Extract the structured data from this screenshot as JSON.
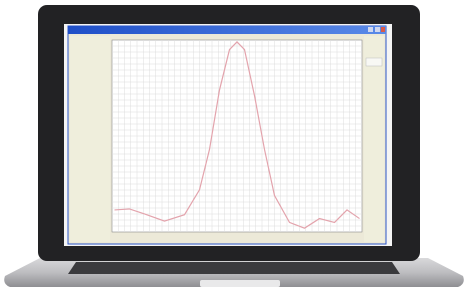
{
  "chart_data": {
    "type": "line",
    "x": [
      1,
      7,
      13,
      21,
      29,
      35,
      39,
      43,
      47,
      50,
      53,
      57,
      61,
      65,
      71,
      77,
      83,
      89,
      94,
      99
    ],
    "series": [
      {
        "color": "#e3a3ac",
        "values": [
          11.5,
          12,
          9.4,
          5.7,
          9,
          22,
          43,
          74,
          95,
          99,
          95,
          71,
          43,
          19,
          5,
          2,
          7,
          5,
          11.5,
          7
        ]
      }
    ],
    "xlim": [
      0,
      100
    ],
    "ylim": [
      0,
      100
    ],
    "grid": true
  }
}
